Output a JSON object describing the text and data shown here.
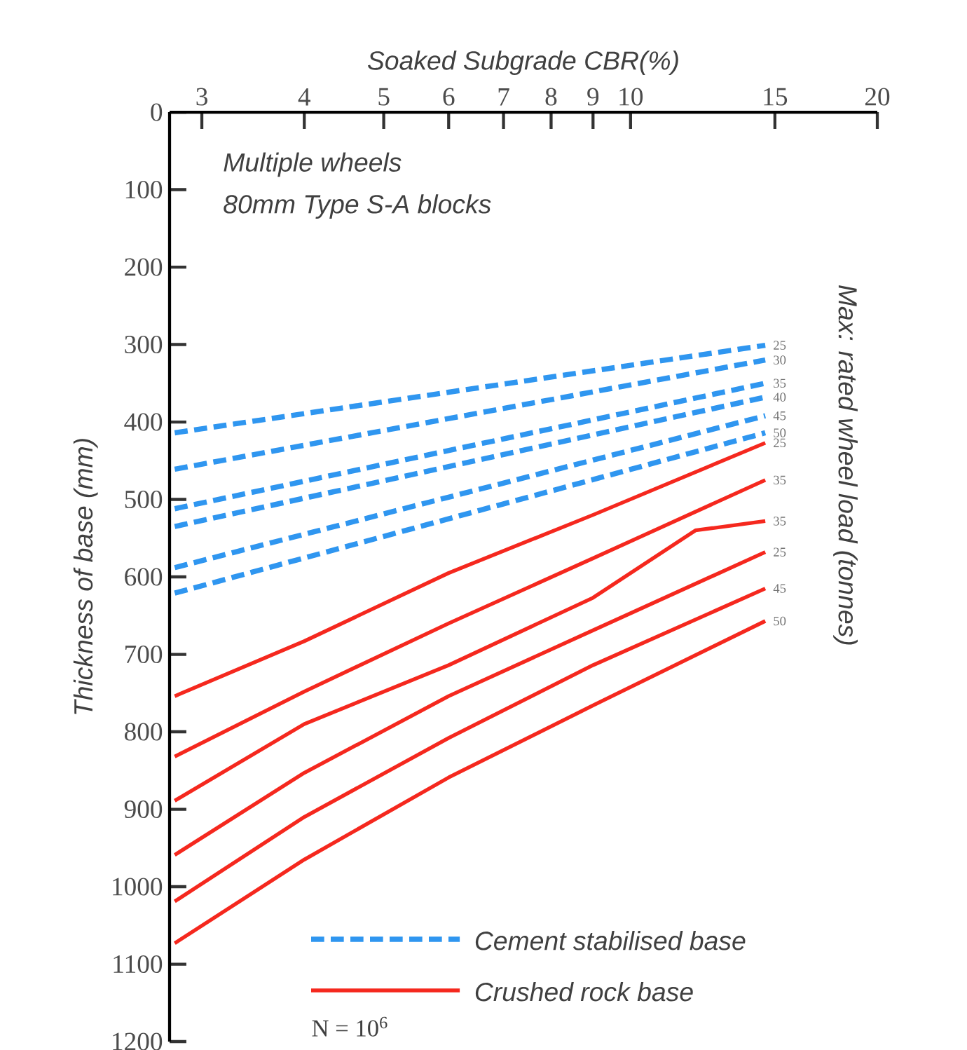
{
  "chart_data": {
    "type": "line",
    "xlabel": "Soaked Subgrade CBR(%)",
    "ylabel": "Thickness of base (mm)",
    "y2label": "Max: rated wheel load (tonnes)",
    "annotations": [
      "Multiple wheels",
      "80mm Type S-A blocks",
      "N = 10$^{6}$",
      "Cement stabilised base",
      "Crushed rock base"
    ],
    "log": "x",
    "xlim": [
      2.74,
      20
    ],
    "xticks": [
      3,
      4,
      5,
      6,
      7,
      8,
      9,
      10,
      15,
      20
    ],
    "ylim": [
      1200,
      0
    ],
    "yticks": [
      0,
      100,
      200,
      300,
      400,
      500,
      600,
      700,
      800,
      900,
      1000,
      1100,
      1200
    ],
    "grid": false,
    "marker": "none",
    "series": [
      {
        "name": "25",
        "color": "#2f96f0",
        "line_style": "dashed",
        "x": [
          2.78,
          14.6
        ],
        "values": [
          414,
          301
        ]
      },
      {
        "name": "30",
        "color": "#2f96f0",
        "line_style": "dashed",
        "x": [
          2.78,
          14.6
        ],
        "values": [
          461,
          320
        ]
      },
      {
        "name": "35",
        "color": "#2f96f0",
        "line_style": "dashed",
        "x": [
          2.78,
          14.6
        ],
        "values": [
          512,
          350
        ]
      },
      {
        "name": "40",
        "color": "#2f96f0",
        "line_style": "dashed",
        "x": [
          2.78,
          14.6
        ],
        "values": [
          535,
          368
        ]
      },
      {
        "name": "45",
        "color": "#2f96f0",
        "line_style": "dashed",
        "x": [
          2.78,
          14.6
        ],
        "values": [
          588,
          392
        ]
      },
      {
        "name": "50",
        "color": "#2f96f0",
        "line_style": "dashed",
        "x": [
          2.78,
          14.6
        ],
        "values": [
          621,
          414
        ]
      },
      {
        "name": "25",
        "color": "#f5281e",
        "line_style": "solid",
        "x": [
          2.78,
          4,
          6,
          9,
          14.6
        ],
        "values": [
          754,
          683,
          595,
          520,
          427
        ]
      },
      {
        "name": "35",
        "color": "#f5281e",
        "line_style": "solid",
        "x": [
          2.78,
          4,
          6,
          9,
          14.6
        ],
        "values": [
          832,
          748,
          660,
          576,
          475
        ]
      },
      {
        "name": "35",
        "color": "#f5281e",
        "line_style": "solid",
        "x": [
          2.78,
          4,
          6,
          9,
          12,
          14.6
        ],
        "values": [
          889,
          790,
          714,
          627,
          540,
          528
        ]
      },
      {
        "name": "25",
        "color": "#f5281e",
        "line_style": "solid",
        "x": [
          2.78,
          4,
          6,
          9,
          14.6
        ],
        "values": [
          959,
          853,
          754,
          669,
          568
        ]
      },
      {
        "name": "45",
        "color": "#f5281e",
        "line_style": "solid",
        "x": [
          2.78,
          4,
          6,
          9,
          14.6
        ],
        "values": [
          1019,
          910,
          808,
          714,
          615
        ]
      },
      {
        "name": "50",
        "color": "#f5281e",
        "line_style": "solid",
        "x": [
          2.78,
          4,
          6,
          9,
          14.6
        ],
        "values": [
          1073,
          965,
          859,
          766,
          657
        ]
      }
    ]
  }
}
